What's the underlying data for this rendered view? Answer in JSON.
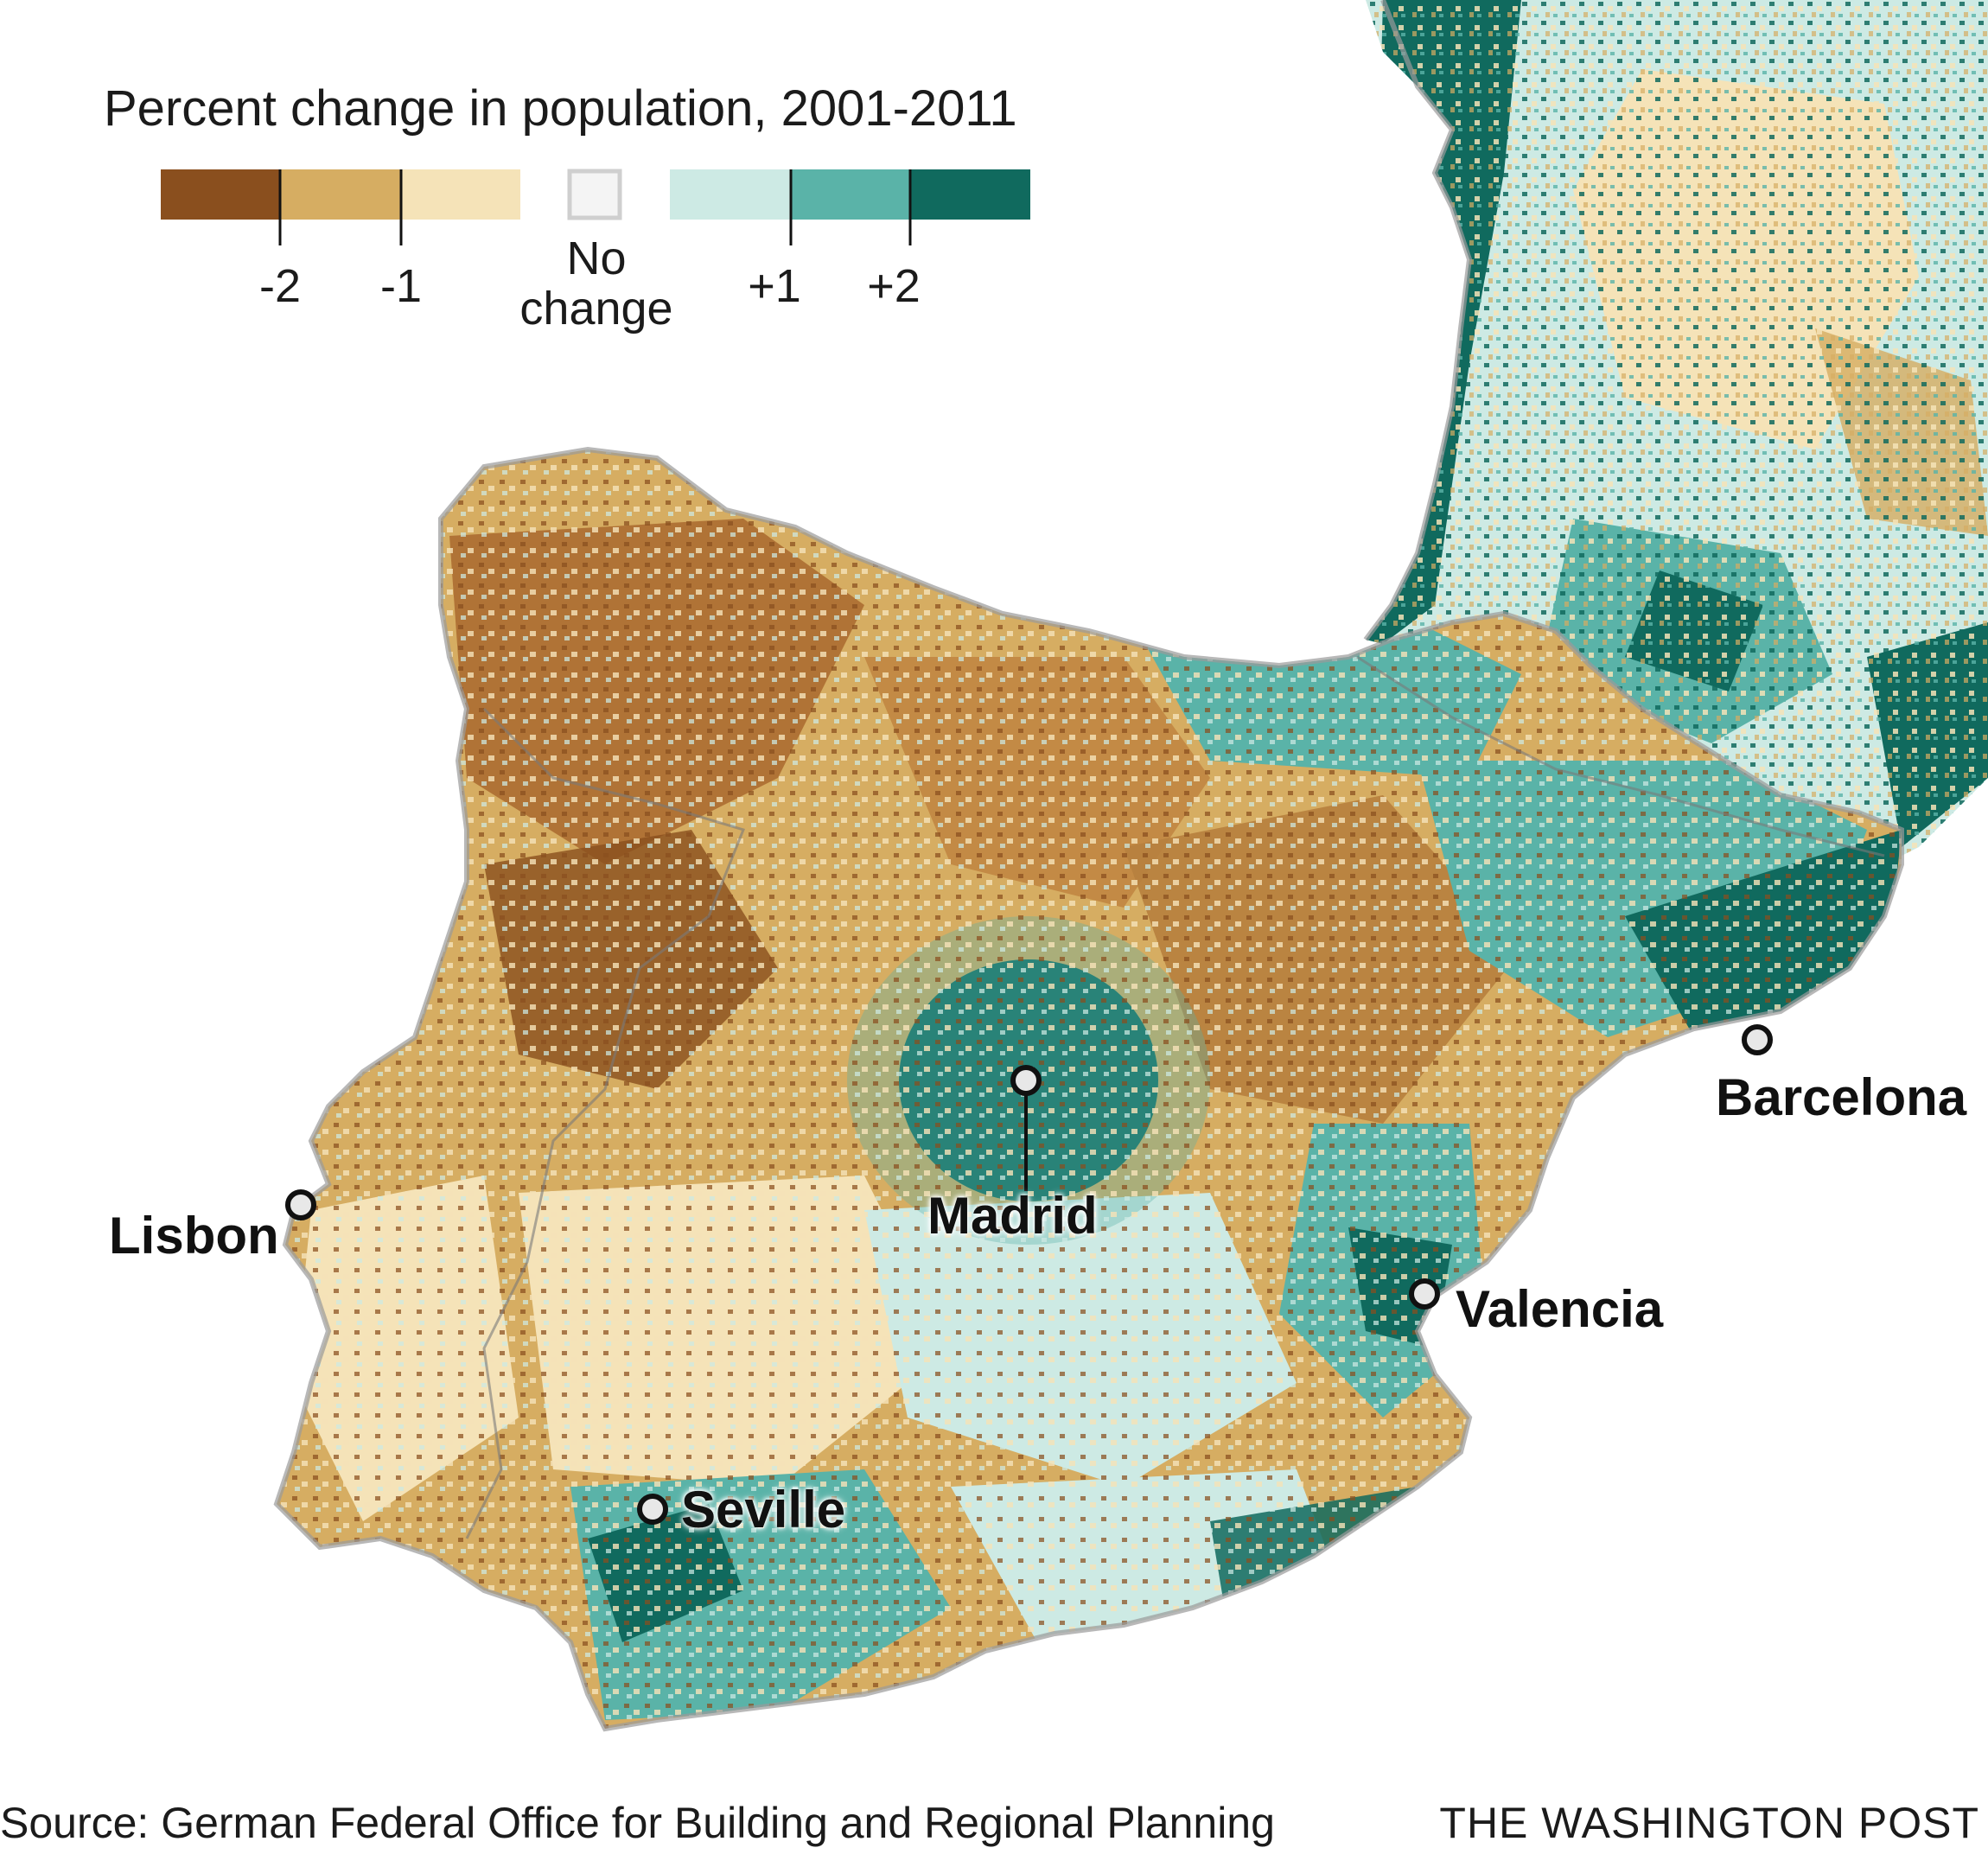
{
  "legend": {
    "title": "Percent change in population, 2001-2011",
    "ticks": [
      "-2",
      "-1",
      "+1",
      "+2"
    ],
    "no_change_line1": "No",
    "no_change_line2": "change",
    "colors": {
      "decline_strong": "#8a4f1e",
      "decline_mid": "#d6ad62",
      "decline_light": "#f5e3b8",
      "no_change": "#f4f4f4",
      "growth_light": "#cdeae4",
      "growth_mid": "#5ab3a8",
      "growth_strong": "#106a5e"
    }
  },
  "cities": {
    "madrid": "Madrid",
    "barcelona": "Barcelona",
    "lisbon": "Lisbon",
    "valencia": "Valencia",
    "seville": "Seville"
  },
  "footer": {
    "source": "Source: German Federal Office for Building and Regional Planning",
    "credit": "THE WASHINGTON POST"
  }
}
